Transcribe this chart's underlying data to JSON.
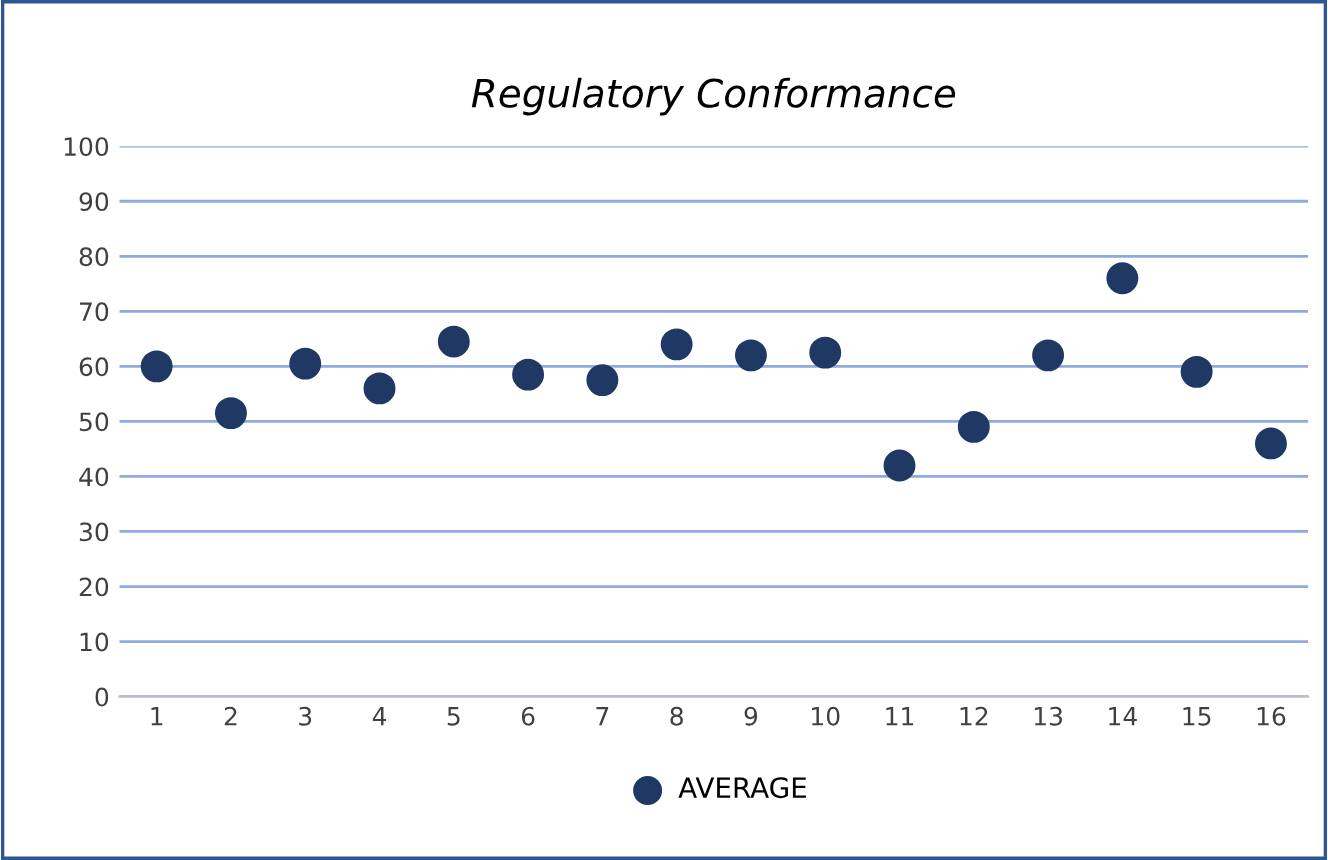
{
  "chart_data": {
    "type": "scatter",
    "title": "Regulatory Conformance",
    "categories": [
      "1",
      "2",
      "3",
      "4",
      "5",
      "6",
      "7",
      "8",
      "9",
      "10",
      "11",
      "12",
      "13",
      "14",
      "15",
      "16"
    ],
    "series": [
      {
        "name": "AVERAGE",
        "color": "#203864",
        "values": [
          60,
          51.5,
          60.5,
          56,
          64.5,
          58.5,
          57.5,
          64,
          62,
          62.5,
          42,
          49,
          62,
          76,
          59,
          46
        ]
      }
    ],
    "ylim": [
      0,
      100
    ],
    "yticks": [
      0,
      10,
      20,
      30,
      40,
      50,
      60,
      70,
      80,
      90,
      100
    ],
    "grid": "y",
    "legend": "bottom",
    "marker": "circle"
  }
}
